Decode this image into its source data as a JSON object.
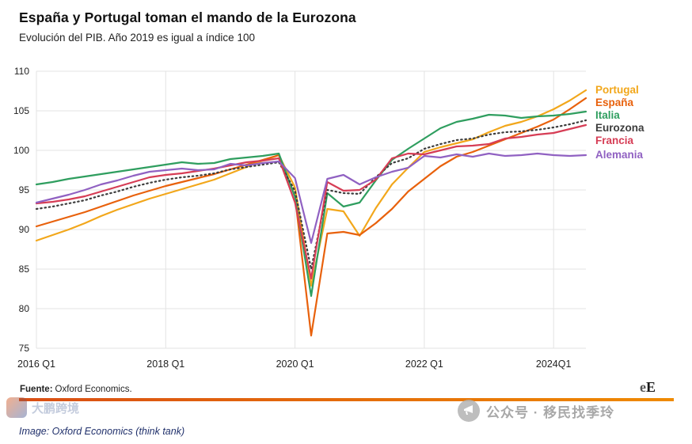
{
  "header": {
    "title": "España y Portugal toman el mando de la Eurozona",
    "subtitle": "Evolución del PIB. Año 2019 es igual a índice 100"
  },
  "footer": {
    "source_label": "Fuente:",
    "source_text": "Oxford Economics.",
    "logo_e": "e",
    "logo_E": "E"
  },
  "watermark": {
    "center": "公众号 · 移民找季玲",
    "left": "大鹏跨境"
  },
  "caption": "Image: Oxford Economics (think tank)",
  "chart_data": {
    "type": "line",
    "title": "España y Portugal toman el mando de la Eurozona",
    "subtitle": "Evolución del PIB. Año 2019 es igual a índice 100",
    "x": [
      "2016 Q1",
      "2016 Q2",
      "2016 Q3",
      "2016 Q4",
      "2017 Q1",
      "2017 Q2",
      "2017 Q3",
      "2017 Q4",
      "2018 Q1",
      "2018 Q2",
      "2018 Q3",
      "2018 Q4",
      "2019 Q1",
      "2019 Q2",
      "2019 Q3",
      "2019 Q4",
      "2020 Q1",
      "2020 Q2",
      "2020 Q3",
      "2020 Q4",
      "2021 Q1",
      "2021 Q2",
      "2021 Q3",
      "2021 Q4",
      "2022 Q1",
      "2022 Q2",
      "2022 Q3",
      "2022 Q4",
      "2023 Q1",
      "2023 Q2",
      "2023 Q3",
      "2023 Q4",
      "2024 Q1",
      "2024 Q2",
      "2024 Q3"
    ],
    "x_tick_labels": [
      "2016 Q1",
      "2018 Q1",
      "2020 Q1",
      "2022 Q1",
      "2024Q1"
    ],
    "x_tick_indices": [
      0,
      8,
      16,
      24,
      32
    ],
    "ylim": [
      75,
      110
    ],
    "y_ticks": [
      75,
      80,
      85,
      90,
      95,
      100,
      105,
      110
    ],
    "grid": true,
    "legend_position": "right",
    "series": [
      {
        "name": "Portugal",
        "color": "#F2A71B",
        "style": "solid",
        "values": [
          88.6,
          89.3,
          90.0,
          90.8,
          91.7,
          92.5,
          93.2,
          93.9,
          94.5,
          95.1,
          95.7,
          96.3,
          97.1,
          97.9,
          98.7,
          99.4,
          95.3,
          82.9,
          92.6,
          92.3,
          89.2,
          92.7,
          95.7,
          97.8,
          99.8,
          100.4,
          100.9,
          101.4,
          102.3,
          103.1,
          103.6,
          104.3,
          105.2,
          106.3,
          107.6
        ]
      },
      {
        "name": "España",
        "color": "#E8610C",
        "style": "solid",
        "values": [
          90.4,
          91.0,
          91.6,
          92.2,
          92.9,
          93.6,
          94.3,
          94.9,
          95.5,
          96.0,
          96.5,
          97.0,
          97.6,
          98.2,
          98.8,
          99.4,
          94.2,
          76.6,
          89.5,
          89.7,
          89.3,
          90.8,
          92.6,
          94.8,
          96.4,
          98.0,
          99.2,
          99.8,
          100.6,
          101.4,
          102.2,
          103.0,
          103.9,
          105.2,
          106.6
        ]
      },
      {
        "name": "Italia",
        "color": "#2F9E5F",
        "style": "solid",
        "values": [
          95.7,
          96.0,
          96.4,
          96.7,
          97.0,
          97.3,
          97.6,
          97.9,
          98.2,
          98.5,
          98.3,
          98.4,
          98.9,
          99.1,
          99.3,
          99.6,
          94.1,
          81.6,
          94.6,
          92.9,
          93.4,
          96.2,
          98.8,
          100.2,
          101.5,
          102.8,
          103.6,
          104.0,
          104.5,
          104.4,
          104.1,
          104.3,
          104.4,
          104.6,
          104.9
        ]
      },
      {
        "name": "Eurozona",
        "color": "#3D3D3D",
        "style": "dotted",
        "values": [
          92.6,
          92.9,
          93.3,
          93.7,
          94.3,
          94.8,
          95.4,
          95.9,
          96.3,
          96.6,
          96.8,
          97.1,
          97.6,
          97.9,
          98.2,
          98.5,
          94.9,
          85.0,
          95.0,
          94.6,
          94.5,
          96.6,
          98.4,
          99.0,
          100.2,
          100.8,
          101.3,
          101.5,
          102.0,
          102.3,
          102.4,
          102.6,
          102.9,
          103.3,
          103.8
        ]
      },
      {
        "name": "Francia",
        "color": "#D63D55",
        "style": "solid",
        "values": [
          93.3,
          93.5,
          93.8,
          94.2,
          94.8,
          95.4,
          96.0,
          96.6,
          96.9,
          97.1,
          97.4,
          97.7,
          98.1,
          98.5,
          98.7,
          99.0,
          93.4,
          83.8,
          96.0,
          94.9,
          95.0,
          96.3,
          99.0,
          99.6,
          99.5,
          100.0,
          100.5,
          100.6,
          100.8,
          101.5,
          101.7,
          102.0,
          102.2,
          102.7,
          103.2
        ]
      },
      {
        "name": "Alemania",
        "color": "#9061C2",
        "style": "solid",
        "values": [
          93.4,
          93.9,
          94.4,
          95.0,
          95.7,
          96.2,
          96.8,
          97.3,
          97.5,
          97.7,
          97.5,
          97.6,
          98.3,
          98.1,
          98.4,
          98.6,
          96.5,
          88.3,
          96.4,
          96.9,
          95.7,
          96.6,
          97.3,
          97.8,
          99.3,
          99.1,
          99.5,
          99.2,
          99.6,
          99.3,
          99.4,
          99.6,
          99.4,
          99.3,
          99.4
        ]
      }
    ]
  }
}
